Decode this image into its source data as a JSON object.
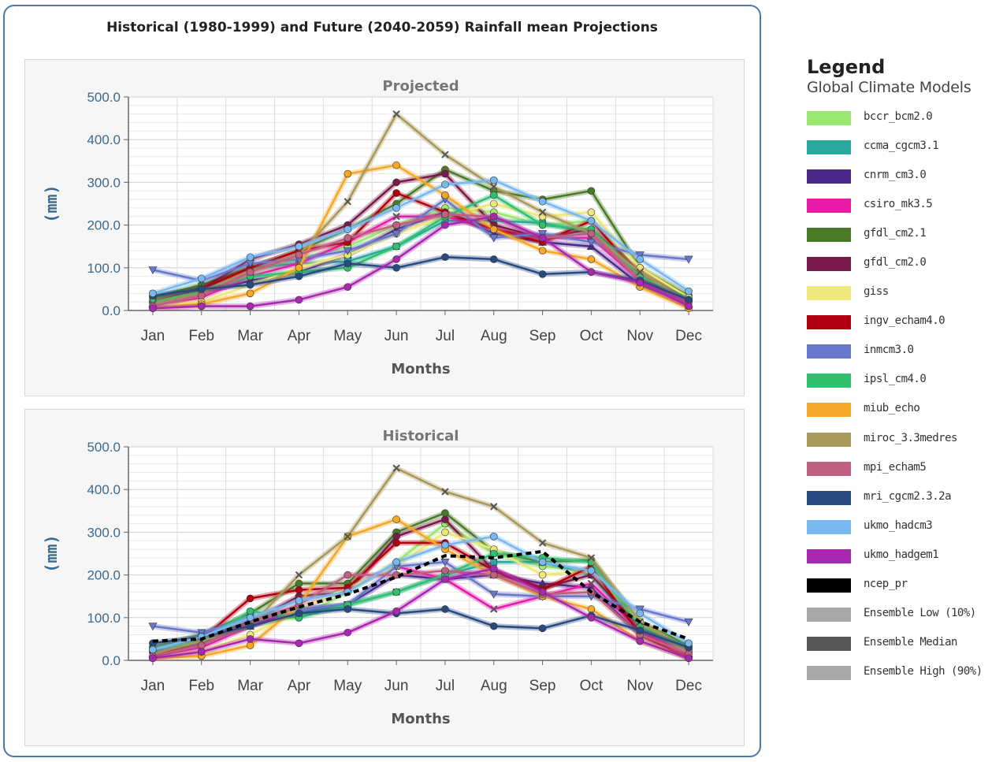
{
  "title": "Historical (1980-1999) and Future (2040-2059) Rainfall mean Projections",
  "legend": {
    "title": "Legend",
    "subtitle": "Global Climate Models",
    "items": [
      {
        "label": "bccr_bcm2.0",
        "color": "#9be870"
      },
      {
        "label": "ccma_cgcm3.1",
        "color": "#2aa8a0"
      },
      {
        "label": "cnrm_cm3.0",
        "color": "#4b2a8c"
      },
      {
        "label": "csiro_mk3.5",
        "color": "#e81aa8"
      },
      {
        "label": "gfdl_cm2.1",
        "color": "#4a7a28"
      },
      {
        "label": "gfdl_cm2.0",
        "color": "#7a1a4a"
      },
      {
        "label": "giss",
        "color": "#eee87a"
      },
      {
        "label": "ingv_echam4.0",
        "color": "#b00010"
      },
      {
        "label": "inmcm3.0",
        "color": "#6878cc"
      },
      {
        "label": "ipsl_cm4.0",
        "color": "#30c070"
      },
      {
        "label": "miub_echo",
        "color": "#f5a828"
      },
      {
        "label": "miroc_3.3medres",
        "color": "#a8985a"
      },
      {
        "label": "mpi_echam5",
        "color": "#c06080"
      },
      {
        "label": "mri_cgcm2.3.2a",
        "color": "#284a80"
      },
      {
        "label": "ukmo_hadcm3",
        "color": "#78b8f0"
      },
      {
        "label": "ukmo_hadgem1",
        "color": "#a828b0"
      },
      {
        "label": "ncep_pr",
        "color": "#000000"
      },
      {
        "label": "Ensemble Low (10%)",
        "color": "#a8a8a8"
      },
      {
        "label": "Ensemble Median",
        "color": "#585858"
      },
      {
        "label": "Ensemble High (90%)",
        "color": "#a8a8a8"
      }
    ]
  },
  "chart_data": [
    {
      "type": "line",
      "title": "Projected",
      "xlabel": "Months",
      "ylabel": "(mm)",
      "ylim": [
        0,
        500
      ],
      "yticks": [
        "0.0",
        "100.0",
        "200.0",
        "300.0",
        "400.0",
        "500.0"
      ],
      "grid": true,
      "categories": [
        "Jan",
        "Feb",
        "Mar",
        "Apr",
        "May",
        "Jun",
        "Jul",
        "Aug",
        "Sep",
        "Oct",
        "Nov",
        "Dec"
      ],
      "series": [
        {
          "name": "bccr_bcm2.0",
          "values": [
            20,
            50,
            90,
            120,
            150,
            200,
            240,
            230,
            200,
            210,
            90,
            25
          ]
        },
        {
          "name": "ccma_cgcm3.1",
          "values": [
            30,
            55,
            100,
            110,
            115,
            150,
            210,
            210,
            205,
            180,
            80,
            30
          ]
        },
        {
          "name": "cnrm_cm3.0",
          "values": [
            15,
            40,
            70,
            90,
            130,
            190,
            230,
            180,
            160,
            150,
            60,
            15
          ]
        },
        {
          "name": "csiro_mk3.5",
          "values": [
            10,
            30,
            80,
            110,
            160,
            220,
            220,
            190,
            170,
            170,
            70,
            15
          ]
        },
        {
          "name": "gfdl_cm2.1",
          "values": [
            30,
            60,
            100,
            140,
            190,
            250,
            330,
            280,
            260,
            280,
            100,
            35
          ]
        },
        {
          "name": "gfdl_cm2.0",
          "values": [
            20,
            50,
            120,
            155,
            200,
            300,
            320,
            200,
            170,
            190,
            90,
            25
          ]
        },
        {
          "name": "giss",
          "values": [
            10,
            20,
            60,
            100,
            130,
            180,
            220,
            250,
            220,
            230,
            100,
            30
          ]
        },
        {
          "name": "ingv_echam4.0",
          "values": [
            20,
            50,
            100,
            140,
            160,
            275,
            230,
            190,
            160,
            210,
            80,
            20
          ]
        },
        {
          "name": "inmcm3.0",
          "values": [
            95,
            70,
            110,
            120,
            140,
            180,
            260,
            170,
            180,
            160,
            130,
            120
          ]
        },
        {
          "name": "ipsl_cm4.0",
          "values": [
            20,
            45,
            80,
            90,
            100,
            150,
            220,
            270,
            200,
            190,
            80,
            25
          ]
        },
        {
          "name": "miub_echo",
          "values": [
            5,
            15,
            40,
            100,
            320,
            340,
            270,
            190,
            140,
            120,
            55,
            5
          ]
        },
        {
          "name": "miroc_3.3medres",
          "values": [
            15,
            40,
            90,
            130,
            255,
            460,
            365,
            290,
            230,
            180,
            90,
            20
          ]
        },
        {
          "name": "mpi_echam5",
          "values": [
            10,
            35,
            90,
            130,
            170,
            200,
            225,
            220,
            170,
            180,
            70,
            20
          ]
        },
        {
          "name": "mri_cgcm2.3.2a",
          "values": [
            35,
            50,
            60,
            80,
            110,
            100,
            125,
            120,
            85,
            90,
            70,
            25
          ]
        },
        {
          "name": "ukmo_hadcm3",
          "values": [
            40,
            75,
            125,
            150,
            190,
            240,
            295,
            305,
            255,
            210,
            120,
            45
          ]
        },
        {
          "name": "ukmo_hadgem1",
          "values": [
            5,
            10,
            10,
            25,
            55,
            120,
            200,
            220,
            170,
            90,
            65,
            10
          ]
        }
      ]
    },
    {
      "type": "line",
      "title": "Historical",
      "xlabel": "Months",
      "ylabel": "(mm)",
      "ylim": [
        0,
        500
      ],
      "yticks": [
        "0.0",
        "100.0",
        "200.0",
        "300.0",
        "400.0",
        "500.0"
      ],
      "grid": true,
      "categories": [
        "Jan",
        "Feb",
        "Mar",
        "Apr",
        "May",
        "Jun",
        "Jul",
        "Aug",
        "Sep",
        "Oct",
        "Nov",
        "Dec"
      ],
      "series": [
        {
          "name": "bccr_bcm2.0",
          "values": [
            20,
            50,
            90,
            100,
            160,
            230,
            320,
            250,
            220,
            210,
            70,
            20
          ]
        },
        {
          "name": "ccma_cgcm3.1",
          "values": [
            30,
            55,
            100,
            110,
            130,
            160,
            200,
            230,
            230,
            200,
            70,
            25
          ]
        },
        {
          "name": "cnrm_cm3.0",
          "values": [
            15,
            40,
            80,
            120,
            130,
            200,
            190,
            200,
            180,
            170,
            60,
            15
          ]
        },
        {
          "name": "csiro_mk3.5",
          "values": [
            10,
            30,
            80,
            120,
            170,
            220,
            190,
            120,
            150,
            180,
            70,
            10
          ]
        },
        {
          "name": "gfdl_cm2.1",
          "values": [
            30,
            60,
            110,
            180,
            180,
            300,
            345,
            255,
            230,
            235,
            90,
            35
          ]
        },
        {
          "name": "gfdl_cm2.0",
          "values": [
            20,
            55,
            90,
            150,
            160,
            290,
            330,
            210,
            170,
            200,
            80,
            25
          ]
        },
        {
          "name": "giss",
          "values": [
            5,
            20,
            60,
            120,
            170,
            220,
            300,
            260,
            200,
            210,
            90,
            20
          ]
        },
        {
          "name": "ingv_echam4.0",
          "values": [
            5,
            50,
            145,
            165,
            170,
            275,
            275,
            210,
            165,
            220,
            60,
            5
          ]
        },
        {
          "name": "inmcm3.0",
          "values": [
            80,
            65,
            100,
            120,
            130,
            220,
            230,
            155,
            150,
            150,
            120,
            90
          ]
        },
        {
          "name": "ipsl_cm4.0",
          "values": [
            25,
            45,
            115,
            100,
            130,
            160,
            200,
            250,
            240,
            230,
            80,
            30
          ]
        },
        {
          "name": "miub_echo",
          "values": [
            5,
            10,
            35,
            130,
            290,
            330,
            260,
            200,
            150,
            120,
            45,
            5
          ]
        },
        {
          "name": "miroc_3.3medres",
          "values": [
            15,
            45,
            80,
            200,
            290,
            450,
            395,
            360,
            275,
            240,
            90,
            20
          ]
        },
        {
          "name": "mpi_echam5",
          "values": [
            10,
            35,
            90,
            130,
            200,
            200,
            210,
            200,
            155,
            160,
            60,
            15
          ]
        },
        {
          "name": "mri_cgcm2.3.2a",
          "values": [
            40,
            55,
            80,
            110,
            120,
            110,
            120,
            80,
            75,
            105,
            70,
            30
          ]
        },
        {
          "name": "ukmo_hadcm3",
          "values": [
            25,
            55,
            100,
            140,
            160,
            230,
            270,
            290,
            230,
            210,
            110,
            40
          ]
        },
        {
          "name": "ukmo_hadgem1",
          "values": [
            5,
            20,
            50,
            40,
            65,
            115,
            190,
            215,
            160,
            100,
            45,
            5
          ]
        },
        {
          "name": "ncep_pr",
          "values": [
            45,
            50,
            90,
            125,
            155,
            195,
            245,
            240,
            255,
            160,
            90,
            50
          ]
        }
      ]
    }
  ]
}
